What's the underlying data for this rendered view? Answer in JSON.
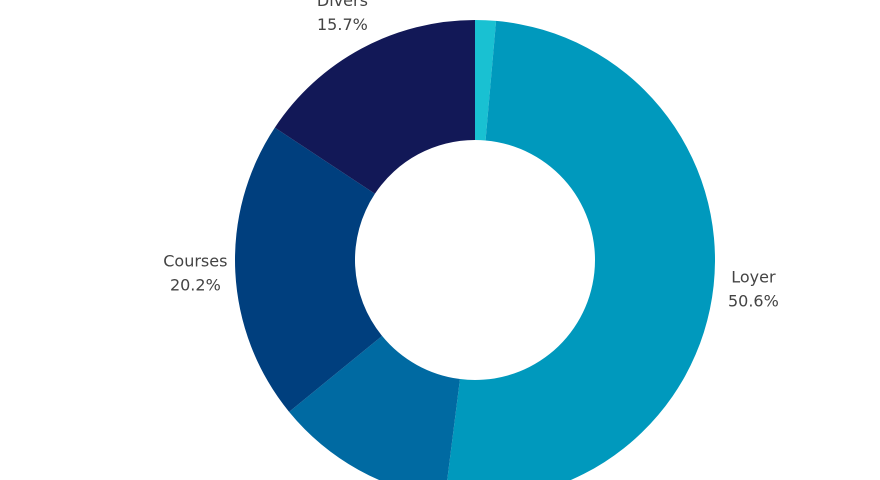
{
  "chart_data": {
    "type": "donut",
    "categories": [
      null,
      "Loyer",
      null,
      "Courses",
      "Divers"
    ],
    "values": [
      1.4,
      50.6,
      12.1,
      20.2,
      15.7
    ],
    "value_labels": [
      null,
      "50.6%",
      null,
      "20.2%",
      "15.7%"
    ],
    "colors": [
      "#19c1d2",
      "#0099bd",
      "#006aa2",
      "#003f7e",
      "#121857"
    ]
  }
}
